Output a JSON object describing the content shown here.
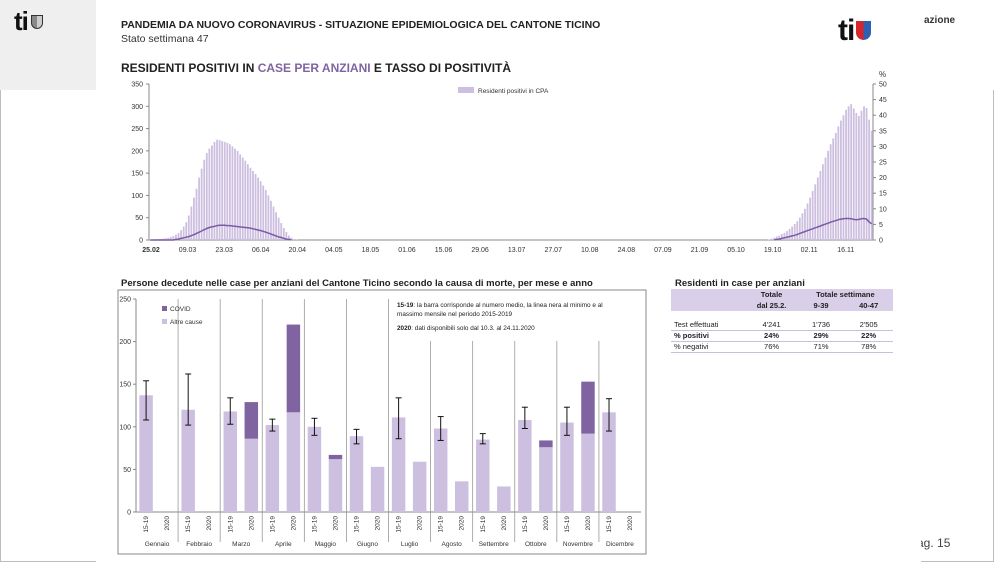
{
  "app": {
    "side_note": "azione",
    "page_label": "ag. 15"
  },
  "header": {
    "title": "PANDEMIA DA NUOVO CORONAVIRUS - SITUAZIONE EPIDEMIOLOGICA DEL CANTONE TICINO",
    "subtitle": "Stato settimana 47",
    "logo_left": "ti",
    "logo_right": "ti"
  },
  "section": {
    "title_part1": "RESIDENTI POSITIVI IN ",
    "title_highlight": "CASE PER ANZIANI",
    "title_part2": " E TASSO DI POSITIVITÀ",
    "right_unit": "%"
  },
  "chart2_title": "Persone decedute nelle case per anziani del Cantone Ticino secondo la causa di morte, per mese e anno",
  "chart2_notes": {
    "note1_bold": "15-19",
    "note1_line1": ": la barra corrisponde al numero medio, la linea nera al minimo e al",
    "note1_line2": "massimo mensile nel periodo 2015-2019",
    "note2_bold": "2020",
    "note2_text": ": dati disponibili solo dal 10.3. al 24.11.2020"
  },
  "table": {
    "title": "Residenti in case per anziani",
    "head": {
      "col1a": "Totale",
      "col1b": "dal 25.2.",
      "span": "Totale settimane",
      "col2": "9-39",
      "col3": "40-47"
    },
    "rows": [
      {
        "label": "Test effettuati",
        "v1": "4'241",
        "v2": "1'736",
        "v3": "2'505"
      },
      {
        "label": "% positivi",
        "v1": "24%",
        "v2": "29%",
        "v3": "22%"
      },
      {
        "label": "% negativi",
        "v1": "76%",
        "v2": "71%",
        "v3": "78%"
      }
    ]
  },
  "colors": {
    "bar_light": "#cdbfe0",
    "bar_dark": "#8064a2",
    "line": "#7b5aa6",
    "highlight": "#8064a2"
  },
  "chart_data": [
    {
      "type": "bar",
      "legend": [
        "Residenti positivi in CPA"
      ],
      "x_ticks": [
        "25.02",
        "09.03",
        "23.03",
        "06.04",
        "20.04",
        "04.05",
        "18.05",
        "01.06",
        "15.06",
        "29.06",
        "13.07",
        "27.07",
        "10.08",
        "24.08",
        "07.09",
        "21.09",
        "05.10",
        "19.10",
        "02.11",
        "16.11"
      ],
      "ylim": [
        0,
        350
      ],
      "y_ticks": [
        0,
        50,
        100,
        150,
        200,
        250,
        300,
        350
      ],
      "y2lim": [
        0,
        50
      ],
      "y2_ticks": [
        0,
        5,
        10,
        15,
        20,
        25,
        30,
        35,
        40,
        45,
        50
      ],
      "y2_label": "%",
      "series": [
        {
          "name": "Residenti positivi in CPA",
          "values": [
            1,
            1,
            1,
            2,
            2,
            3,
            4,
            5,
            7,
            9,
            12,
            16,
            22,
            30,
            40,
            55,
            75,
            95,
            115,
            140,
            160,
            180,
            195,
            205,
            212,
            220,
            225,
            224,
            222,
            220,
            218,
            215,
            210,
            205,
            200,
            192,
            185,
            178,
            170,
            162,
            155,
            148,
            140,
            132,
            122,
            112,
            100,
            88,
            75,
            62,
            50,
            38,
            27,
            18,
            10,
            5,
            2,
            1,
            0,
            0,
            0,
            0,
            0,
            0,
            0,
            0,
            0,
            0,
            0,
            0,
            0,
            0,
            0,
            0,
            0,
            0,
            0,
            0,
            0,
            0,
            0,
            0,
            0,
            0,
            0,
            0,
            0,
            0,
            0,
            0,
            0,
            0,
            0,
            0,
            0,
            0,
            0,
            0,
            0,
            0,
            0,
            0,
            0,
            0,
            0,
            0,
            0,
            0,
            0,
            0,
            0,
            0,
            0,
            0,
            0,
            0,
            0,
            0,
            0,
            0,
            0,
            0,
            0,
            0,
            0,
            0,
            0,
            0,
            0,
            0,
            0,
            0,
            0,
            0,
            0,
            0,
            0,
            0,
            0,
            0,
            0,
            0,
            0,
            0,
            0,
            0,
            0,
            0,
            0,
            0,
            0,
            0,
            0,
            0,
            0,
            0,
            0,
            0,
            0,
            0,
            0,
            0,
            0,
            0,
            0,
            0,
            0,
            0,
            0,
            0,
            0,
            0,
            0,
            0,
            0,
            0,
            0,
            0,
            0,
            0,
            0,
            0,
            0,
            0,
            0,
            0,
            0,
            0,
            0,
            0,
            0,
            0,
            0,
            0,
            0,
            0,
            0,
            0,
            0,
            0,
            0,
            0,
            0,
            0,
            0,
            0,
            0,
            0,
            0,
            0,
            0,
            0,
            0,
            0,
            0,
            0,
            0,
            0,
            0,
            0,
            0,
            0,
            0,
            0,
            0,
            0,
            0,
            0,
            0,
            0,
            0,
            0,
            0,
            0,
            0,
            0,
            0,
            0,
            0,
            0,
            0,
            1,
            3,
            5,
            8,
            10,
            13,
            16,
            20,
            25,
            30,
            36,
            42,
            50,
            60,
            70,
            82,
            95,
            110,
            125,
            140,
            155,
            170,
            185,
            200,
            215,
            228,
            240,
            255,
            268,
            280,
            292,
            300,
            305,
            295,
            285,
            278,
            290,
            300,
            296,
            270,
            245
          ]
        }
      ],
      "line_series": {
        "name": "tasso di positività",
        "values_note": "approx. % on right axis",
        "values": [
          0,
          0,
          0,
          0,
          0,
          0,
          0,
          0,
          0,
          0,
          0.2,
          0.3,
          0.5,
          0.7,
          0.9,
          1.1,
          1.4,
          1.7,
          2.1,
          2.5,
          2.9,
          3.3,
          3.7,
          4.0,
          4.2,
          4.4,
          4.6,
          4.7,
          4.7,
          4.7,
          4.6,
          4.6,
          4.5,
          4.4,
          4.3,
          4.2,
          4.1,
          4.0,
          3.9,
          3.8,
          3.6,
          3.4,
          3.2,
          3.0,
          2.8,
          2.5,
          2.2,
          1.9,
          1.6,
          1.3,
          1.0,
          0.8,
          0.5,
          0.3,
          0.2,
          0.1
        ]
      },
      "line_series_end": {
        "values": [
          0.1,
          0.2,
          0.3,
          0.5,
          0.7,
          0.9,
          1.1,
          1.3,
          1.5,
          1.8,
          2.1,
          2.4,
          2.7,
          3.0,
          3.3,
          3.6,
          3.9,
          4.2,
          4.5,
          4.8,
          5.1,
          5.4,
          5.7,
          6.0,
          6.2,
          6.5,
          6.7,
          6.8,
          6.9,
          6.9,
          6.8,
          6.6,
          6.5,
          6.6,
          6.8,
          6.9,
          6.7,
          5.8,
          5.2
        ]
      }
    },
    {
      "type": "bar",
      "ylim": [
        0,
        250
      ],
      "y_ticks": [
        0,
        50,
        100,
        150,
        200,
        250
      ],
      "legend": [
        "COVID",
        "Altre cause"
      ],
      "months": [
        "Gennaio",
        "Febbraio",
        "Marzo",
        "Aprile",
        "Maggio",
        "Giugno",
        "Luglio",
        "Agosto",
        "Settembre",
        "Ottobre",
        "Novembre",
        "Dicembre"
      ],
      "x_labels": [
        "15-19",
        "2020"
      ],
      "series": [
        {
          "name": "15-19",
          "values": [
            137,
            120,
            118,
            102,
            100,
            89,
            111,
            98,
            85,
            108,
            105,
            117
          ],
          "min": [
            108,
            102,
            103,
            95,
            90,
            80,
            86,
            84,
            80,
            98,
            90,
            95
          ],
          "max": [
            154,
            162,
            134,
            109,
            110,
            97,
            134,
            112,
            92,
            123,
            123,
            133
          ]
        },
        {
          "name": "2020 Altre cause",
          "values": [
            0,
            0,
            86,
            117,
            62,
            53,
            59,
            36,
            30,
            76,
            92,
            0
          ]
        },
        {
          "name": "2020 COVID",
          "values": [
            0,
            0,
            43,
            103,
            5,
            0,
            0,
            0,
            0,
            8,
            61,
            0
          ]
        }
      ]
    }
  ]
}
